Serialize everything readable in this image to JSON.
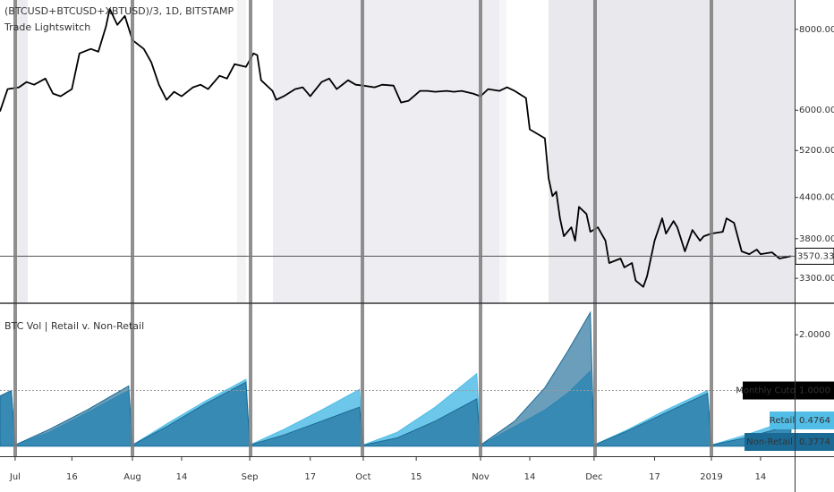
{
  "chart_data": [
    {
      "type": "line",
      "title": "(BTCUSD+BTCUSD+XBTUSD)/3, 1D, BITSTAMP",
      "subtitle": "Trade Lightswitch",
      "log_scale": true,
      "color": "#000000",
      "xlim": [
        "2018-06-27",
        "2019-01-23"
      ],
      "ylim": [
        3030,
        8880
      ],
      "yticks": [
        {
          "value": 3300,
          "label": "3300.00"
        },
        {
          "value": 3800,
          "label": "3800.00"
        },
        {
          "value": 4400,
          "label": "4400.00"
        },
        {
          "value": 5200,
          "label": "5200.00"
        },
        {
          "value": 6000,
          "label": "6000.00"
        },
        {
          "value": 8000,
          "label": "8000.00"
        }
      ],
      "x": [
        "2018-06-27",
        "2018-06-29",
        "2018-07-02",
        "2018-07-04",
        "2018-07-06",
        "2018-07-09",
        "2018-07-11",
        "2018-07-13",
        "2018-07-16",
        "2018-07-18",
        "2018-07-21",
        "2018-07-23",
        "2018-07-25",
        "2018-07-26",
        "2018-07-28",
        "2018-07-30",
        "2018-08-01",
        "2018-08-04",
        "2018-08-06",
        "2018-08-08",
        "2018-08-10",
        "2018-08-12",
        "2018-08-14",
        "2018-08-17",
        "2018-08-19",
        "2018-08-21",
        "2018-08-24",
        "2018-08-26",
        "2018-08-28",
        "2018-08-31",
        "2018-09-02",
        "2018-09-03",
        "2018-09-04",
        "2018-09-07",
        "2018-09-08",
        "2018-09-10",
        "2018-09-13",
        "2018-09-15",
        "2018-09-17",
        "2018-09-20",
        "2018-09-22",
        "2018-09-24",
        "2018-09-27",
        "2018-09-29",
        "2018-10-01",
        "2018-10-04",
        "2018-10-06",
        "2018-10-09",
        "2018-10-11",
        "2018-10-13",
        "2018-10-16",
        "2018-10-18",
        "2018-10-20",
        "2018-10-23",
        "2018-10-25",
        "2018-10-27",
        "2018-10-30",
        "2018-11-01",
        "2018-11-03",
        "2018-11-06",
        "2018-11-08",
        "2018-11-10",
        "2018-11-13",
        "2018-11-14",
        "2018-11-16",
        "2018-11-18",
        "2018-11-19",
        "2018-11-20",
        "2018-11-21",
        "2018-11-22",
        "2018-11-23",
        "2018-11-25",
        "2018-11-26",
        "2018-11-27",
        "2018-11-29",
        "2018-11-30",
        "2018-12-02",
        "2018-12-04",
        "2018-12-05",
        "2018-12-08",
        "2018-12-09",
        "2018-12-11",
        "2018-12-12",
        "2018-12-14",
        "2018-12-15",
        "2018-12-17",
        "2018-12-19",
        "2018-12-20",
        "2018-12-22",
        "2018-12-23",
        "2018-12-25",
        "2018-12-27",
        "2018-12-29",
        "2018-12-30",
        "2019-01-01",
        "2019-01-04",
        "2019-01-05",
        "2019-01-07",
        "2019-01-09",
        "2019-01-11",
        "2019-01-13",
        "2019-01-14",
        "2019-01-17",
        "2019-01-19",
        "2019-01-22"
      ],
      "values": [
        5974,
        6468,
        6509,
        6633,
        6570,
        6717,
        6366,
        6306,
        6468,
        7344,
        7461,
        7389,
        8077,
        8606,
        8128,
        8390,
        7701,
        7461,
        7113,
        6570,
        6227,
        6407,
        6306,
        6509,
        6570,
        6468,
        6782,
        6717,
        7068,
        7002,
        7344,
        7298,
        6675,
        6427,
        6227,
        6306,
        6468,
        6509,
        6306,
        6633,
        6717,
        6468,
        6675,
        6570,
        6550,
        6509,
        6570,
        6550,
        6168,
        6207,
        6427,
        6427,
        6407,
        6427,
        6407,
        6427,
        6366,
        6306,
        6468,
        6427,
        6509,
        6427,
        6267,
        5606,
        5518,
        5431,
        4709,
        4422,
        4491,
        4085,
        3833,
        3957,
        3773,
        4254,
        4149,
        3894,
        3957,
        3773,
        3485,
        3541,
        3431,
        3485,
        3273,
        3201,
        3325,
        3773,
        4085,
        3870,
        4046,
        3957,
        3632,
        3919,
        3773,
        3833,
        3870,
        3894,
        4085,
        4020,
        3632,
        3597,
        3655,
        3597,
        3620,
        3541,
        3570.33
      ]
    },
    {
      "type": "area",
      "title": "BTC Vol | Retail v. Non-Retail",
      "xlim": [
        "2018-06-27",
        "2019-01-23"
      ],
      "ylim": [
        -0.18,
        2.55
      ],
      "yticks": [
        {
          "value": 2,
          "label": "2.0000"
        }
      ],
      "cutoff": {
        "name": "Monthly Cutoff",
        "value": 1,
        "label": "1.0000"
      },
      "xticks": [
        {
          "value": "2018-07-01",
          "label": "Jul"
        },
        {
          "value": "2018-07-16",
          "label": "16"
        },
        {
          "value": "2018-08-01",
          "label": "Aug"
        },
        {
          "value": "2018-08-14",
          "label": "14"
        },
        {
          "value": "2018-09-01",
          "label": "Sep"
        },
        {
          "value": "2018-09-17",
          "label": "17"
        },
        {
          "value": "2018-10-01",
          "label": "Oct"
        },
        {
          "value": "2018-10-15",
          "label": "15"
        },
        {
          "value": "2018-11-01",
          "label": "Nov"
        },
        {
          "value": "2018-11-14",
          "label": "14"
        },
        {
          "value": "2018-12-01",
          "label": "Dec"
        },
        {
          "value": "2018-12-17",
          "label": "17"
        },
        {
          "value": "2019-01-01",
          "label": "2019"
        },
        {
          "value": "2019-01-14",
          "label": "14"
        }
      ],
      "x": [
        "2018-06-27",
        "2018-06-30",
        "2018-07-01",
        "2018-07-10",
        "2018-07-20",
        "2018-07-31",
        "2018-08-01",
        "2018-08-10",
        "2018-08-20",
        "2018-08-31",
        "2018-09-01",
        "2018-09-10",
        "2018-09-20",
        "2018-09-30",
        "2018-10-01",
        "2018-10-10",
        "2018-10-20",
        "2018-10-31",
        "2018-11-01",
        "2018-11-10",
        "2018-11-18",
        "2018-11-24",
        "2018-11-30",
        "2018-12-01",
        "2018-12-10",
        "2018-12-20",
        "2018-12-31",
        "2019-01-01",
        "2019-01-10",
        "2019-01-22"
      ],
      "series": [
        {
          "name": "Retail",
          "color": "#52bde6",
          "values": [
            0.9,
            1.0,
            0.02,
            0.25,
            0.6,
            1.0,
            0.02,
            0.4,
            0.8,
            1.2,
            0.02,
            0.3,
            0.65,
            1.02,
            0.02,
            0.25,
            0.7,
            1.3,
            0.02,
            0.35,
            0.65,
            0.95,
            1.35,
            0.02,
            0.3,
            0.65,
            1.0,
            0.02,
            0.2,
            0.4764
          ]
        },
        {
          "name": "Non-Retail",
          "color": "#1b6a95",
          "values": [
            0.9,
            1.0,
            0.02,
            0.3,
            0.65,
            1.08,
            0.02,
            0.35,
            0.75,
            1.15,
            0.02,
            0.2,
            0.45,
            0.7,
            0.02,
            0.15,
            0.45,
            0.85,
            0.02,
            0.45,
            1.05,
            1.7,
            2.4,
            0.02,
            0.28,
            0.6,
            0.95,
            0.02,
            0.15,
            0.3774
          ]
        }
      ]
    }
  ]
}
